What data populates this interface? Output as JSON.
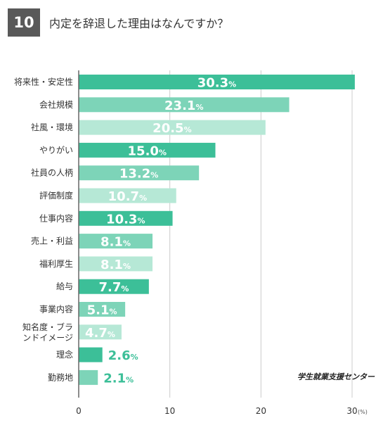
{
  "header": {
    "question_number": "10",
    "title": "内定を辞退した理由はなんですか？"
  },
  "source": "学生就業支援センター",
  "colors": {
    "dark": "#3cbf98",
    "mid": "#7dd4b8",
    "light": "#b6e8d6",
    "axis": "#666666",
    "grid": "#cccccc"
  },
  "chart_data": {
    "type": "bar",
    "orientation": "horizontal",
    "categories": [
      "将来性・安定性",
      "会社規模",
      "社風・環境",
      "やりがい",
      "社員の人柄",
      "評価制度",
      "仕事内容",
      "売上・利益",
      "福利厚生",
      "給与",
      "事業内容",
      "知名度・ブランドイメージ",
      "理念",
      "勤務地"
    ],
    "category_lines": [
      [
        "将来性・安定性"
      ],
      [
        "会社規模"
      ],
      [
        "社風・環境"
      ],
      [
        "やりがい"
      ],
      [
        "社員の人柄"
      ],
      [
        "評価制度"
      ],
      [
        "仕事内容"
      ],
      [
        "売上・利益"
      ],
      [
        "福利厚生"
      ],
      [
        "給与"
      ],
      [
        "事業内容"
      ],
      [
        "知名度・ブラ",
        "ンドイメージ"
      ],
      [
        "理念"
      ],
      [
        "勤務地"
      ]
    ],
    "values": [
      30.3,
      23.1,
      20.5,
      15.0,
      13.2,
      10.7,
      10.3,
      8.1,
      8.1,
      7.7,
      5.1,
      4.7,
      2.6,
      2.1
    ],
    "value_labels": [
      "30.3",
      "23.1",
      "20.5",
      "15.0",
      "13.2",
      "10.7",
      "10.3",
      "8.1",
      "8.1",
      "7.7",
      "5.1",
      "4.7",
      "2.6",
      "2.1"
    ],
    "value_unit": "%",
    "x_ticks": [
      "0",
      "10",
      "20",
      "30"
    ],
    "x_unit": "(%)",
    "xlim": [
      0,
      30
    ],
    "grid": true
  }
}
